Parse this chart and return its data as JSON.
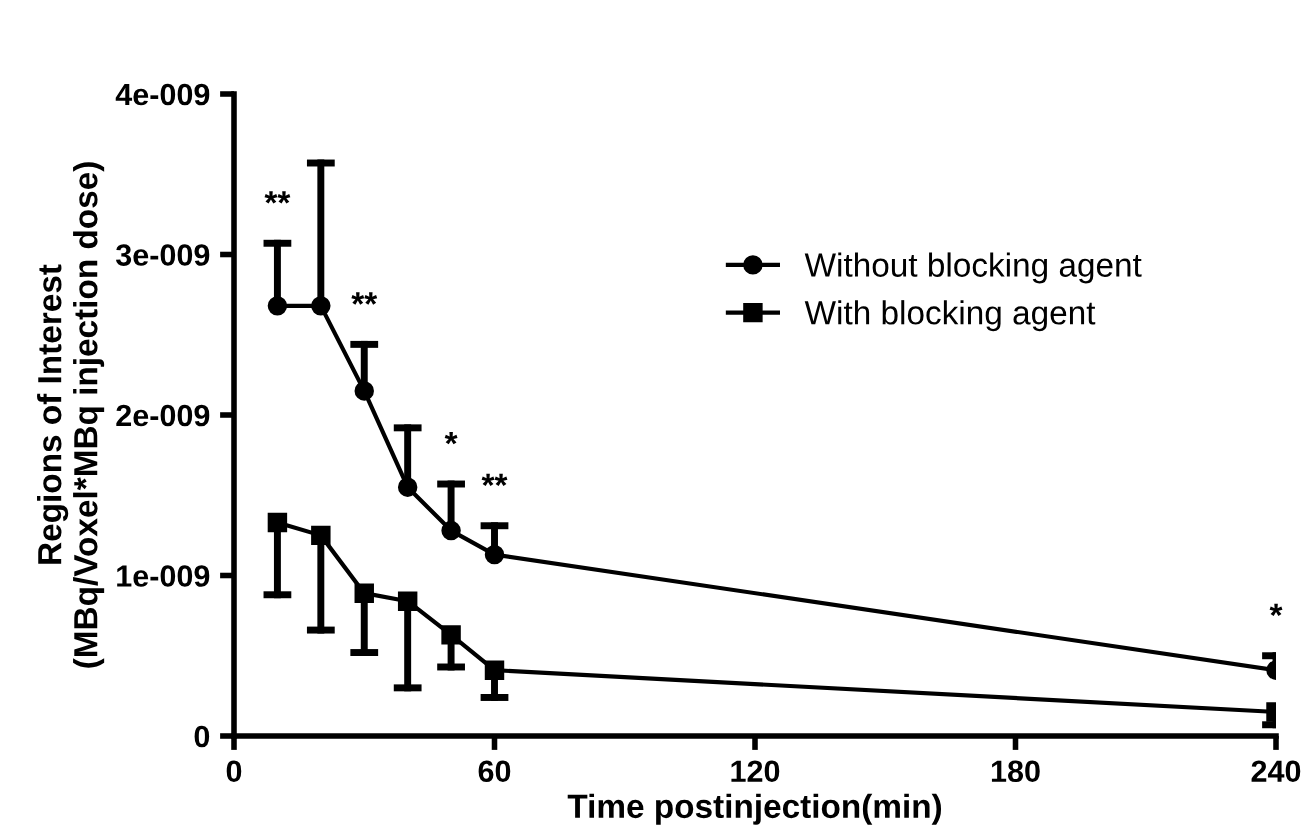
{
  "chart_data": {
    "type": "line",
    "xlabel": "Time postinjection(min)",
    "ylabel": "Regions of Interest\n(MBq/Voxel*MBq injection dose)",
    "x": [
      10,
      20,
      30,
      40,
      50,
      60,
      240
    ],
    "series": [
      {
        "name": "Without blocking agent",
        "color": "#000000",
        "marker": "circle",
        "values": [
          2.68e-09,
          2.68e-09,
          2.15e-09,
          1.55e-09,
          1.28e-09,
          1.13e-09,
          4.1e-10
        ],
        "errors": [
          [
            2.68e-09,
            3.07e-09
          ],
          [
            2.68e-09,
            3.57e-09
          ],
          [
            2.15e-09,
            2.44e-09
          ],
          [
            1.55e-09,
            1.92e-09
          ],
          [
            1.28e-09,
            1.57e-09
          ],
          [
            1.13e-09,
            1.31e-09
          ],
          [
            4.1e-10,
            5e-10
          ]
        ]
      },
      {
        "name": "With blocking agent",
        "color": "#000000",
        "marker": "square",
        "values": [
          1.33e-09,
          1.25e-09,
          8.9e-10,
          8.4e-10,
          6.3e-10,
          4.1e-10,
          1.5e-10
        ],
        "errors": [
          [
            8.8e-10,
            1.33e-09
          ],
          [
            6.6e-10,
            1.25e-09
          ],
          [
            5.2e-10,
            8.9e-10
          ],
          [
            3e-10,
            8.4e-10
          ],
          [
            4.3e-10,
            6.3e-10
          ],
          [
            2.4e-10,
            4.1e-10
          ],
          [
            7e-11,
            1.5e-10
          ]
        ]
      }
    ],
    "xlim": [
      0,
      240
    ],
    "xticks": [
      0,
      60,
      120,
      180,
      240
    ],
    "ylim": [
      0,
      4e-09
    ],
    "yticks": [
      0,
      {
        "value": 1e-09,
        "label": "1e-009"
      },
      {
        "value": 2e-09,
        "label": "2e-009"
      },
      {
        "value": 3e-09,
        "label": "3e-009"
      },
      {
        "value": 4e-09,
        "label": "4e-009"
      }
    ],
    "annotations": [
      {
        "text": "**",
        "x": 10,
        "y": 3.07e-09
      },
      {
        "text": "**",
        "x": 30,
        "y": 2.15e-09
      },
      {
        "text": "*",
        "x": 50,
        "y": 1.28e-09
      },
      {
        "text": "**",
        "x": 60,
        "y": 1.13e-09
      },
      {
        "text": "*",
        "x": 240,
        "y": 4.1e-10
      }
    ],
    "legend": "top right",
    "grid": false,
    "line_style": "solid"
  }
}
